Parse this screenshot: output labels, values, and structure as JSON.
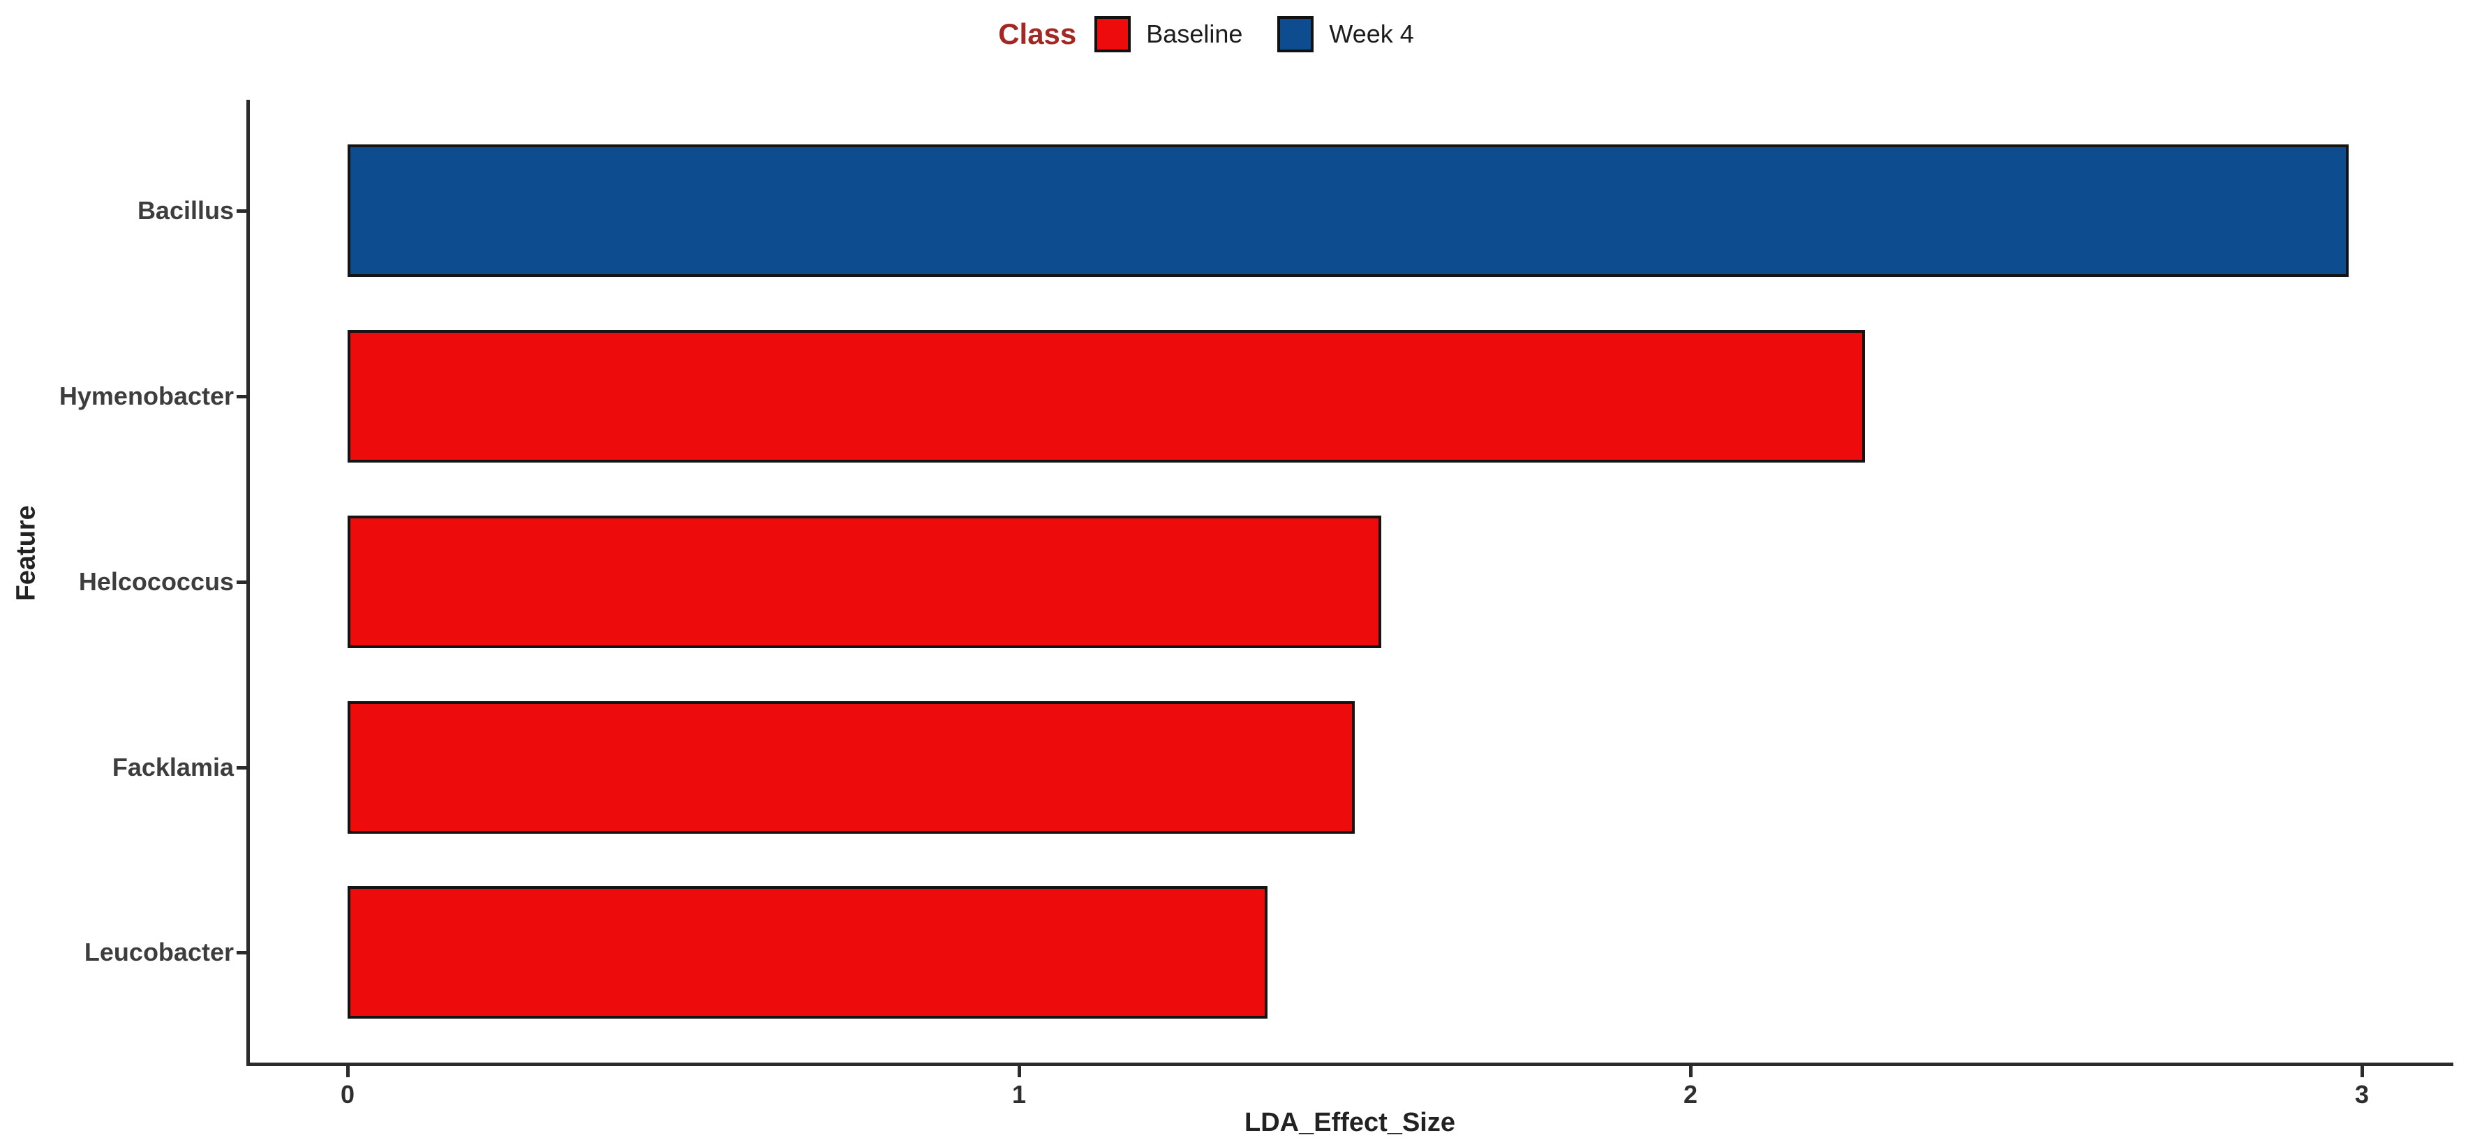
{
  "legend": {
    "title": "Class",
    "title_color": "#A32722",
    "entries": [
      {
        "label": "Baseline",
        "color": "#EE0B0B"
      },
      {
        "label": "Week 4",
        "color": "#0D4C8E"
      }
    ]
  },
  "axes": {
    "x_title": "LDA_Effect_Size",
    "y_title": "Feature"
  },
  "chart_data": {
    "type": "bar",
    "orientation": "horizontal",
    "title": "",
    "xlabel": "LDA_Effect_Size",
    "ylabel": "Feature",
    "xlim": [
      0,
      3.1
    ],
    "xticks": [
      0,
      1,
      2,
      3
    ],
    "grid": false,
    "legend_position": "top",
    "legend_title": "Class",
    "categories": [
      "Bacillus",
      "Hymenobacter",
      "Helcococcus",
      "Facklamia",
      "Leucobacter"
    ],
    "bars": [
      {
        "feature": "Bacillus",
        "value": 2.98,
        "class": "Week 4"
      },
      {
        "feature": "Hymenobacter",
        "value": 2.26,
        "class": "Baseline"
      },
      {
        "feature": "Helcococcus",
        "value": 1.54,
        "class": "Baseline"
      },
      {
        "feature": "Facklamia",
        "value": 1.5,
        "class": "Baseline"
      },
      {
        "feature": "Leucobacter",
        "value": 1.37,
        "class": "Baseline"
      }
    ],
    "series": [
      {
        "name": "Baseline",
        "color": "#EE0B0B",
        "values": [
          null,
          2.26,
          1.54,
          1.5,
          1.37
        ]
      },
      {
        "name": "Week 4",
        "color": "#0D4C8E",
        "values": [
          2.98,
          null,
          null,
          null,
          null
        ]
      }
    ],
    "class_colors": {
      "Baseline": "#EE0B0B",
      "Week 4": "#0D4C8E"
    }
  }
}
